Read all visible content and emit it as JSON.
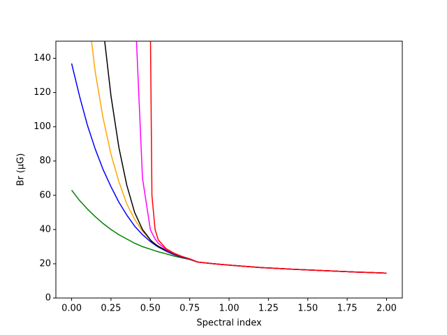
{
  "chart_data": {
    "type": "line",
    "xlabel": "Spectral index",
    "ylabel": "Br (μG)",
    "x": [
      0,
      0.05,
      0.1,
      0.15,
      0.2,
      0.25,
      0.3,
      0.35,
      0.4,
      0.45,
      0.5,
      0.51,
      0.53,
      0.55,
      0.6,
      0.65,
      0.7,
      0.75,
      0.8,
      0.9,
      1.0,
      1.1,
      1.2,
      1.3,
      1.4,
      1.5,
      1.6,
      1.7,
      1.8,
      1.9,
      2.0
    ],
    "series": [
      {
        "color": "#008000",
        "values": [
          63,
          57,
          52,
          47.5,
          43.5,
          40,
          37,
          34.5,
          32,
          30,
          28.5,
          28.2,
          27.6,
          27,
          25.8,
          24.5,
          23.5,
          22.5,
          21,
          20,
          19.2,
          18.5,
          17.8,
          17.3,
          16.8,
          16.4,
          16.0,
          15.6,
          15.2,
          14.9,
          14.5
        ]
      },
      {
        "color": "#0000ff",
        "values": [
          137,
          118,
          101,
          87,
          75,
          65,
          56,
          48.5,
          42,
          37,
          33,
          32.3,
          31,
          29.8,
          27.3,
          25.3,
          23.8,
          22.6,
          21,
          20,
          19.2,
          18.5,
          17.8,
          17.3,
          16.8,
          16.4,
          16.0,
          15.6,
          15.2,
          14.9,
          14.5
        ]
      },
      {
        "color": "#ffa500",
        "values": [
          null,
          null,
          170,
          132,
          105,
          84,
          68,
          55,
          46,
          39,
          34,
          33.2,
          31.6,
          30.3,
          27.7,
          25.6,
          24,
          22.7,
          21,
          20,
          19.2,
          18.5,
          17.8,
          17.3,
          16.8,
          16.4,
          16.0,
          15.6,
          15.2,
          14.9,
          14.5
        ]
      },
      {
        "color": "#000000",
        "values": [
          null,
          null,
          null,
          null,
          158,
          118,
          88,
          66,
          50,
          40,
          34,
          33,
          31.5,
          30.2,
          27.8,
          25.7,
          24,
          22.7,
          21,
          20,
          19.2,
          18.5,
          17.8,
          17.3,
          16.8,
          16.4,
          16.0,
          15.6,
          15.2,
          14.9,
          14.5
        ]
      },
      {
        "color": "#ff00ff",
        "values": [
          null,
          null,
          null,
          null,
          null,
          null,
          null,
          null,
          175,
          70,
          40,
          38,
          34.5,
          32,
          28.3,
          26,
          24.2,
          22.8,
          21,
          20,
          19.2,
          18.5,
          17.8,
          17.3,
          16.8,
          16.4,
          16.0,
          15.6,
          15.2,
          14.9,
          14.5
        ]
      },
      {
        "color": "#ff0000",
        "values": [
          null,
          null,
          null,
          null,
          null,
          null,
          null,
          null,
          null,
          null,
          160,
          60,
          40,
          34,
          28.8,
          26.2,
          24.3,
          22.9,
          21,
          20,
          19.2,
          18.5,
          17.8,
          17.3,
          16.8,
          16.4,
          16.0,
          15.6,
          15.2,
          14.9,
          14.5
        ]
      }
    ],
    "xlim": [
      -0.1,
      2.1
    ],
    "ylim": [
      0,
      150
    ],
    "xticks": [
      {
        "value": 0,
        "label": "0.00"
      },
      {
        "value": 0.25,
        "label": "0.25"
      },
      {
        "value": 0.5,
        "label": "0.50"
      },
      {
        "value": 0.75,
        "label": "0.75"
      },
      {
        "value": 1,
        "label": "1.00"
      },
      {
        "value": 1.25,
        "label": "1.25"
      },
      {
        "value": 1.5,
        "label": "1.50"
      },
      {
        "value": 1.75,
        "label": "1.75"
      },
      {
        "value": 2,
        "label": "2.00"
      }
    ],
    "yticks": [
      0,
      20,
      40,
      60,
      80,
      100,
      120,
      140
    ]
  }
}
